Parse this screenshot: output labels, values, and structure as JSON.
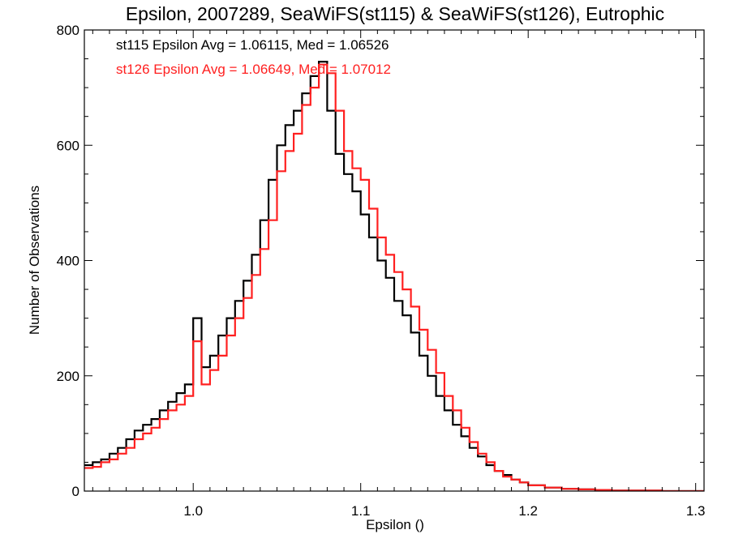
{
  "chart_data": {
    "type": "line",
    "title": "Epsilon, 2007289, SeaWiFS(st115) & SeaWiFS(st126), Eutrophic",
    "xlabel": "Epsilon ()",
    "ylabel": "Number of Observations",
    "xlim": [
      0.935,
      1.305
    ],
    "ylim": [
      0,
      800
    ],
    "x_ticks": [
      1.0,
      1.1,
      1.2,
      1.3
    ],
    "x_tick_labels": [
      "1.0",
      "1.1",
      "1.2",
      "1.3"
    ],
    "y_ticks": [
      0,
      200,
      400,
      600,
      800
    ],
    "y_tick_labels": [
      "0",
      "200",
      "400",
      "600",
      "800"
    ],
    "grid": false,
    "annotations": [
      {
        "text": "st115 Epsilon Avg = 1.06115, Med = 1.06526",
        "color": "#000000"
      },
      {
        "text": "st126 Epsilon Avg = 1.06649, Med = 1.07012",
        "color": "#ff2020"
      }
    ],
    "series": [
      {
        "color": "#000000",
        "x": [
          0.935,
          0.94,
          0.945,
          0.95,
          0.955,
          0.96,
          0.965,
          0.97,
          0.975,
          0.98,
          0.985,
          0.99,
          0.995,
          1.0,
          1.005,
          1.01,
          1.015,
          1.02,
          1.025,
          1.03,
          1.035,
          1.04,
          1.045,
          1.05,
          1.055,
          1.06,
          1.065,
          1.07,
          1.075,
          1.08,
          1.085,
          1.09,
          1.095,
          1.1,
          1.105,
          1.11,
          1.115,
          1.12,
          1.125,
          1.13,
          1.135,
          1.14,
          1.145,
          1.15,
          1.155,
          1.16,
          1.165,
          1.17,
          1.175,
          1.18,
          1.185,
          1.19,
          1.195,
          1.2,
          1.21,
          1.22,
          1.23,
          1.24,
          1.25,
          1.26,
          1.27,
          1.28,
          1.29,
          1.3,
          1.305
        ],
        "y": [
          45,
          50,
          55,
          65,
          75,
          90,
          105,
          115,
          125,
          140,
          155,
          170,
          185,
          300,
          215,
          235,
          270,
          300,
          330,
          365,
          410,
          470,
          540,
          600,
          635,
          660,
          690,
          720,
          745,
          660,
          585,
          550,
          520,
          480,
          440,
          400,
          370,
          330,
          305,
          275,
          235,
          200,
          165,
          140,
          115,
          95,
          75,
          60,
          45,
          35,
          28,
          20,
          15,
          10,
          6,
          4,
          3,
          2,
          1,
          1,
          1,
          0,
          0,
          0,
          0
        ]
      },
      {
        "color": "#ff2020",
        "x": [
          0.935,
          0.94,
          0.945,
          0.95,
          0.955,
          0.96,
          0.965,
          0.97,
          0.975,
          0.98,
          0.985,
          0.99,
          0.995,
          1.0,
          1.005,
          1.01,
          1.015,
          1.02,
          1.025,
          1.03,
          1.035,
          1.04,
          1.045,
          1.05,
          1.055,
          1.06,
          1.065,
          1.07,
          1.075,
          1.08,
          1.085,
          1.09,
          1.095,
          1.1,
          1.105,
          1.11,
          1.115,
          1.12,
          1.125,
          1.13,
          1.135,
          1.14,
          1.145,
          1.15,
          1.155,
          1.16,
          1.165,
          1.17,
          1.175,
          1.18,
          1.185,
          1.19,
          1.195,
          1.2,
          1.21,
          1.22,
          1.23,
          1.24,
          1.25,
          1.26,
          1.27,
          1.28,
          1.29,
          1.3,
          1.305
        ],
        "y": [
          40,
          42,
          50,
          55,
          65,
          75,
          90,
          100,
          110,
          125,
          140,
          150,
          165,
          260,
          185,
          210,
          235,
          270,
          300,
          335,
          375,
          420,
          470,
          555,
          590,
          620,
          670,
          700,
          740,
          725,
          660,
          590,
          560,
          540,
          490,
          440,
          410,
          380,
          350,
          320,
          280,
          245,
          205,
          165,
          140,
          110,
          85,
          65,
          50,
          35,
          25,
          20,
          15,
          10,
          6,
          4,
          3,
          2,
          1,
          1,
          1,
          0,
          0,
          0,
          0
        ]
      }
    ]
  }
}
